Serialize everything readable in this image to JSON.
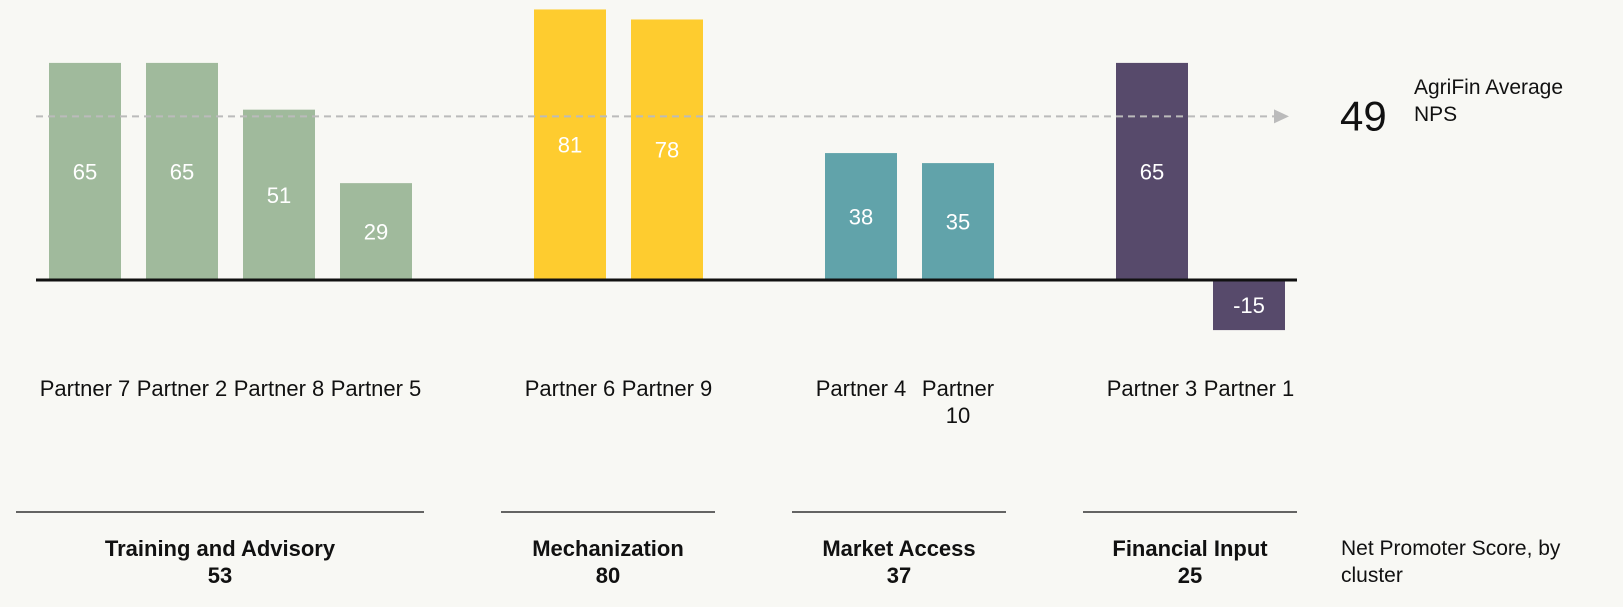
{
  "chart_data": {
    "type": "bar",
    "groups": [
      {
        "name": "Training and Advisory",
        "score": 53,
        "color": "#a0ba9c",
        "categories": [
          "Partner 7",
          "Partner 2",
          "Partner 8",
          "Partner 5"
        ],
        "values": [
          65,
          65,
          51,
          29
        ]
      },
      {
        "name": "Mechanization",
        "score": 80,
        "color": "#fecc2f",
        "categories": [
          "Partner 6",
          "Partner 9"
        ],
        "values": [
          81,
          78
        ]
      },
      {
        "name": "Market Access",
        "score": 37,
        "color": "#61a3aa",
        "categories": [
          "Partner 4",
          "Partner 10"
        ],
        "values": [
          38,
          35
        ]
      },
      {
        "name": "Financial Input",
        "score": 25,
        "color": "#574a6b",
        "categories": [
          "Partner 3",
          "Partner 1"
        ],
        "values": [
          65,
          -15
        ]
      }
    ],
    "average": {
      "value": 49,
      "label": "AgriFin Average NPS"
    },
    "footnote": "Net Promoter Score, by cluster"
  }
}
